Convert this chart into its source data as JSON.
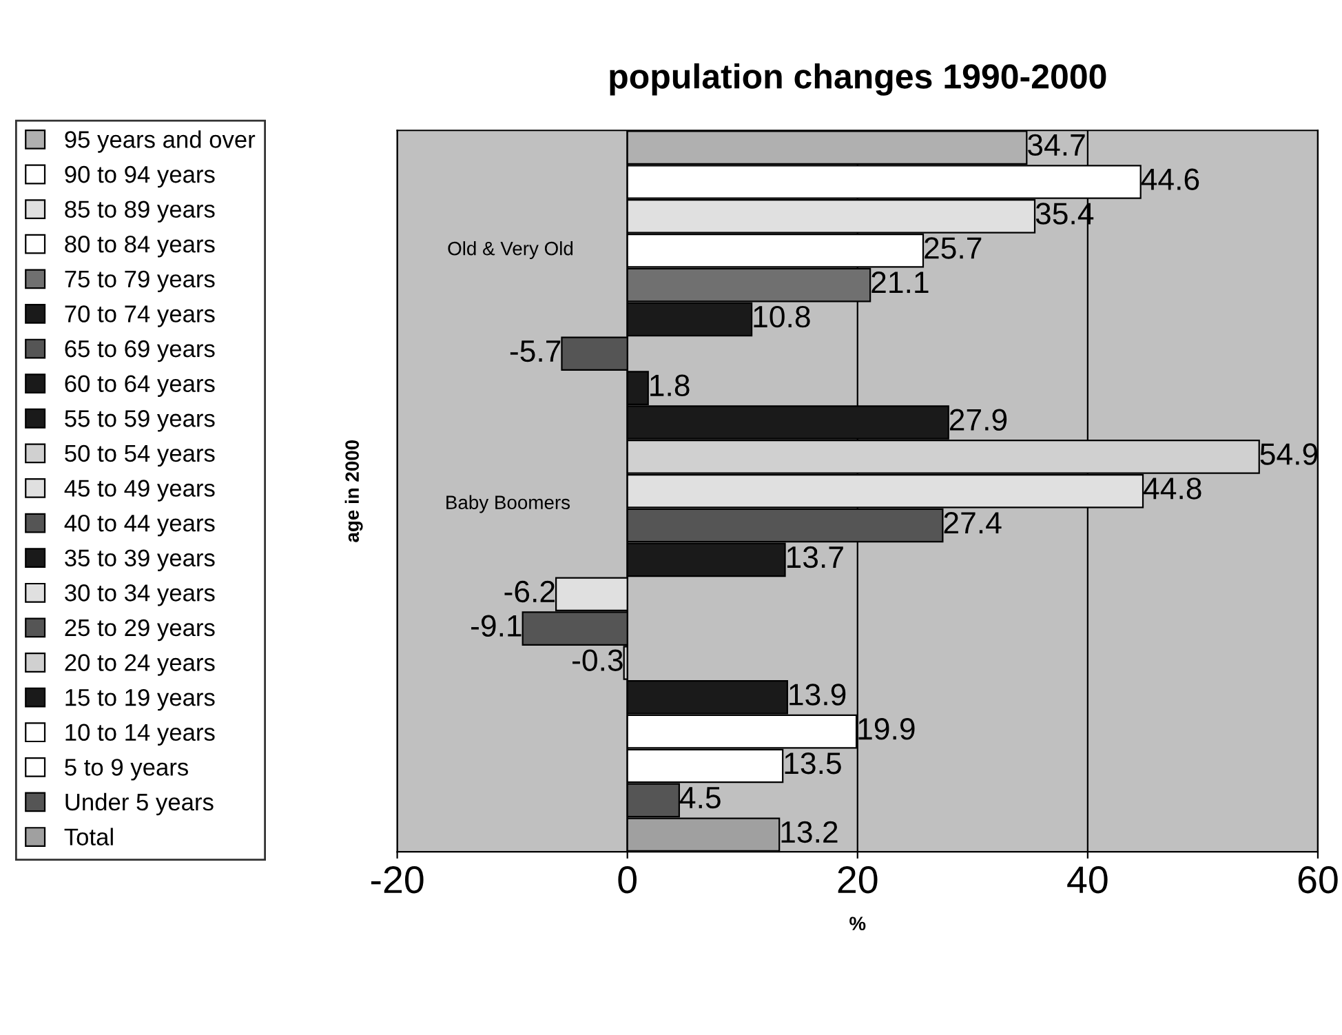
{
  "chart_data": {
    "type": "bar",
    "orientation": "horizontal",
    "title": "population changes 1990-2000",
    "xlabel": "%",
    "ylabel": "age in 2000",
    "categories": [
      null
    ],
    "series": [
      {
        "name": "95 years and over",
        "color": "#b0b0b0",
        "values": [
          34.7
        ]
      },
      {
        "name": "90 to 94 years",
        "color": "#ffffff",
        "values": [
          44.6
        ]
      },
      {
        "name": "85 to 89 years",
        "color": "#e0e0e0",
        "values": [
          35.4
        ]
      },
      {
        "name": "80 to 84 years",
        "color": "#ffffff",
        "values": [
          25.7
        ]
      },
      {
        "name": "75 to 79 years",
        "color": "#707070",
        "values": [
          21.1
        ]
      },
      {
        "name": "70 to 74 years",
        "color": "#1a1a1a",
        "values": [
          10.8
        ]
      },
      {
        "name": "65 to 69 years",
        "color": "#555555",
        "values": [
          -5.7
        ]
      },
      {
        "name": "60 to 64 years",
        "color": "#1a1a1a",
        "values": [
          1.8
        ]
      },
      {
        "name": "55 to 59 years",
        "color": "#1a1a1a",
        "values": [
          27.9
        ]
      },
      {
        "name": "50 to 54 years",
        "color": "#d0d0d0",
        "values": [
          54.9
        ]
      },
      {
        "name": "45 to 49 years",
        "color": "#e0e0e0",
        "values": [
          44.8
        ]
      },
      {
        "name": "40 to 44 years",
        "color": "#555555",
        "values": [
          27.4
        ]
      },
      {
        "name": "35 to 39 years",
        "color": "#1a1a1a",
        "values": [
          13.7
        ]
      },
      {
        "name": "30 to 34 years",
        "color": "#e0e0e0",
        "values": [
          -6.2
        ]
      },
      {
        "name": "25 to 29 years",
        "color": "#555555",
        "values": [
          -9.1
        ]
      },
      {
        "name": "20 to 24 years",
        "color": "#d0d0d0",
        "values": [
          -0.3
        ]
      },
      {
        "name": "15 to 19 years",
        "color": "#1a1a1a",
        "values": [
          13.9
        ]
      },
      {
        "name": "10 to 14 years",
        "color": "#ffffff",
        "values": [
          19.9
        ]
      },
      {
        "name": "5 to 9 years",
        "color": "#ffffff",
        "values": [
          13.5
        ]
      },
      {
        "name": "Under 5 years",
        "color": "#555555",
        "values": [
          4.5
        ]
      },
      {
        "name": "Total",
        "color": "#a0a0a0",
        "values": [
          13.2
        ]
      }
    ],
    "xlim": [
      -20,
      60
    ],
    "xticks": [
      -20,
      0,
      20,
      40,
      60
    ],
    "grid": "x",
    "legend": "left",
    "tick_labels": "x",
    "data_labels": true,
    "annotations": [
      "Old & Very Old",
      "Baby Boomers"
    ]
  }
}
